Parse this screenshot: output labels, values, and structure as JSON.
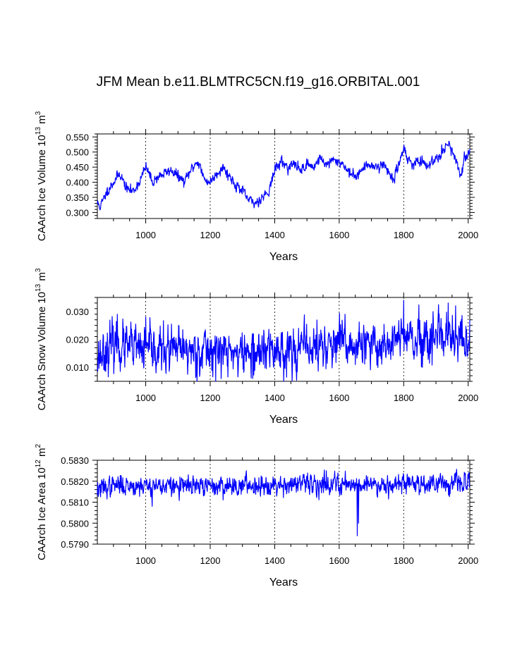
{
  "chart_data": [
    {
      "type": "line",
      "title": "JFM Mean b.e11.BLMTRC5CN.f19_g16.ORBITAL.001",
      "ylabel": "CAArch Ice Volume 10",
      "ylabel_exp": "13",
      "ylabel_unit": " m",
      "ylabel_unit_exp": "3",
      "xlabel": "Years",
      "xlim": [
        850,
        2005
      ],
      "ylim": [
        0.28,
        0.56
      ],
      "yticks": [
        0.3,
        0.35,
        0.4,
        0.45,
        0.5,
        0.55
      ],
      "ytick_labels": [
        "0.300",
        "0.350",
        "0.400",
        "0.450",
        "0.500",
        "0.550"
      ],
      "xticks": [
        1000,
        1200,
        1400,
        1600,
        1800,
        2000
      ],
      "xtick_labels": [
        "1000",
        "1200",
        "1400",
        "1600",
        "1800",
        "2000"
      ],
      "series": [
        {
          "name": "CAArch Ice Volume",
          "color": "#0000ff",
          "anchors": [
            [
              850,
              0.33
            ],
            [
              860,
              0.32
            ],
            [
              880,
              0.37
            ],
            [
              900,
              0.4
            ],
            [
              920,
              0.43
            ],
            [
              940,
              0.38
            ],
            [
              960,
              0.37
            ],
            [
              980,
              0.4
            ],
            [
              1000,
              0.45
            ],
            [
              1010,
              0.43
            ],
            [
              1020,
              0.4
            ],
            [
              1040,
              0.42
            ],
            [
              1060,
              0.43
            ],
            [
              1080,
              0.44
            ],
            [
              1100,
              0.42
            ],
            [
              1120,
              0.4
            ],
            [
              1140,
              0.44
            ],
            [
              1160,
              0.47
            ],
            [
              1170,
              0.45
            ],
            [
              1180,
              0.41
            ],
            [
              1200,
              0.4
            ],
            [
              1220,
              0.43
            ],
            [
              1240,
              0.45
            ],
            [
              1260,
              0.42
            ],
            [
              1280,
              0.39
            ],
            [
              1300,
              0.37
            ],
            [
              1320,
              0.34
            ],
            [
              1340,
              0.33
            ],
            [
              1360,
              0.35
            ],
            [
              1380,
              0.37
            ],
            [
              1390,
              0.4
            ],
            [
              1400,
              0.44
            ],
            [
              1420,
              0.47
            ],
            [
              1440,
              0.45
            ],
            [
              1460,
              0.46
            ],
            [
              1480,
              0.44
            ],
            [
              1500,
              0.46
            ],
            [
              1520,
              0.45
            ],
            [
              1540,
              0.48
            ],
            [
              1560,
              0.46
            ],
            [
              1580,
              0.47
            ],
            [
              1600,
              0.47
            ],
            [
              1620,
              0.45
            ],
            [
              1640,
              0.42
            ],
            [
              1660,
              0.43
            ],
            [
              1680,
              0.45
            ],
            [
              1700,
              0.46
            ],
            [
              1720,
              0.45
            ],
            [
              1740,
              0.46
            ],
            [
              1760,
              0.42
            ],
            [
              1770,
              0.41
            ],
            [
              1780,
              0.44
            ],
            [
              1790,
              0.48
            ],
            [
              1800,
              0.52
            ],
            [
              1810,
              0.48
            ],
            [
              1830,
              0.46
            ],
            [
              1850,
              0.47
            ],
            [
              1870,
              0.45
            ],
            [
              1890,
              0.47
            ],
            [
              1910,
              0.49
            ],
            [
              1930,
              0.52
            ],
            [
              1940,
              0.53
            ],
            [
              1950,
              0.5
            ],
            [
              1960,
              0.47
            ],
            [
              1970,
              0.44
            ],
            [
              1980,
              0.43
            ],
            [
              1990,
              0.48
            ],
            [
              2005,
              0.51
            ]
          ],
          "noise": 0.008,
          "seed": 11
        }
      ]
    },
    {
      "type": "line",
      "ylabel": "CAArch Snow Volume 10",
      "ylabel_exp": "13",
      "ylabel_unit": " m",
      "ylabel_unit_exp": "3",
      "xlabel": "Years",
      "xlim": [
        850,
        2005
      ],
      "ylim": [
        0.005,
        0.035
      ],
      "yticks": [
        0.01,
        0.02,
        0.03
      ],
      "ytick_labels": [
        "0.010",
        "0.020",
        "0.030"
      ],
      "xticks": [
        1000,
        1200,
        1400,
        1600,
        1800,
        2000
      ],
      "xtick_labels": [
        "1000",
        "1200",
        "1400",
        "1600",
        "1800",
        "2000"
      ],
      "series": [
        {
          "name": "CAArch Snow Volume",
          "color": "#0000ff",
          "anchors": [
            [
              850,
              0.014
            ],
            [
              900,
              0.018
            ],
            [
              950,
              0.017
            ],
            [
              1000,
              0.016
            ],
            [
              1100,
              0.016
            ],
            [
              1200,
              0.016
            ],
            [
              1300,
              0.015
            ],
            [
              1400,
              0.016
            ],
            [
              1500,
              0.017
            ],
            [
              1600,
              0.018
            ],
            [
              1700,
              0.017
            ],
            [
              1800,
              0.021
            ],
            [
              1850,
              0.018
            ],
            [
              1900,
              0.019
            ],
            [
              1950,
              0.02
            ],
            [
              2005,
              0.018
            ]
          ],
          "noise": 0.0038,
          "seed": 23,
          "spikes": [
            [
              1800,
              0.034
            ],
            [
              1938,
              0.033
            ],
            [
              1961,
              0.032
            ],
            [
              1618,
              0.029
            ],
            [
              912,
              0.029
            ],
            [
              1332,
              0.006
            ],
            [
              1000,
              0.028
            ]
          ]
        }
      ]
    },
    {
      "type": "line",
      "ylabel": "CAArch Ice Area 10",
      "ylabel_exp": "12",
      "ylabel_unit": " m",
      "ylabel_unit_exp": "2",
      "xlabel": "Years",
      "xlim": [
        850,
        2005
      ],
      "ylim": [
        0.579,
        0.583
      ],
      "yticks": [
        0.579,
        0.58,
        0.581,
        0.582,
        0.583
      ],
      "ytick_labels": [
        "0.5790",
        "0.5800",
        "0.5810",
        "0.5820",
        "0.5830"
      ],
      "xticks": [
        1000,
        1200,
        1400,
        1600,
        1800,
        2000
      ],
      "xtick_labels": [
        "1000",
        "1200",
        "1400",
        "1600",
        "1800",
        "2000"
      ],
      "series": [
        {
          "name": "CAArch Ice Area",
          "color": "#0000ff",
          "anchors": [
            [
              850,
              0.5816
            ],
            [
              900,
              0.5818
            ],
            [
              1000,
              0.5818
            ],
            [
              1100,
              0.58175
            ],
            [
              1200,
              0.58175
            ],
            [
              1300,
              0.5818
            ],
            [
              1400,
              0.58185
            ],
            [
              1500,
              0.58185
            ],
            [
              1600,
              0.5819
            ],
            [
              1700,
              0.58185
            ],
            [
              1800,
              0.5819
            ],
            [
              1900,
              0.5819
            ],
            [
              2005,
              0.5819
            ]
          ],
          "noise": 0.00022,
          "seed": 37,
          "spikes": [
            [
              1656,
              0.5794
            ],
            [
              1660,
              0.58
            ],
            [
              1560,
              0.5825
            ],
            [
              1020,
              0.5808
            ],
            [
              2003,
              0.5824
            ]
          ]
        }
      ]
    }
  ]
}
